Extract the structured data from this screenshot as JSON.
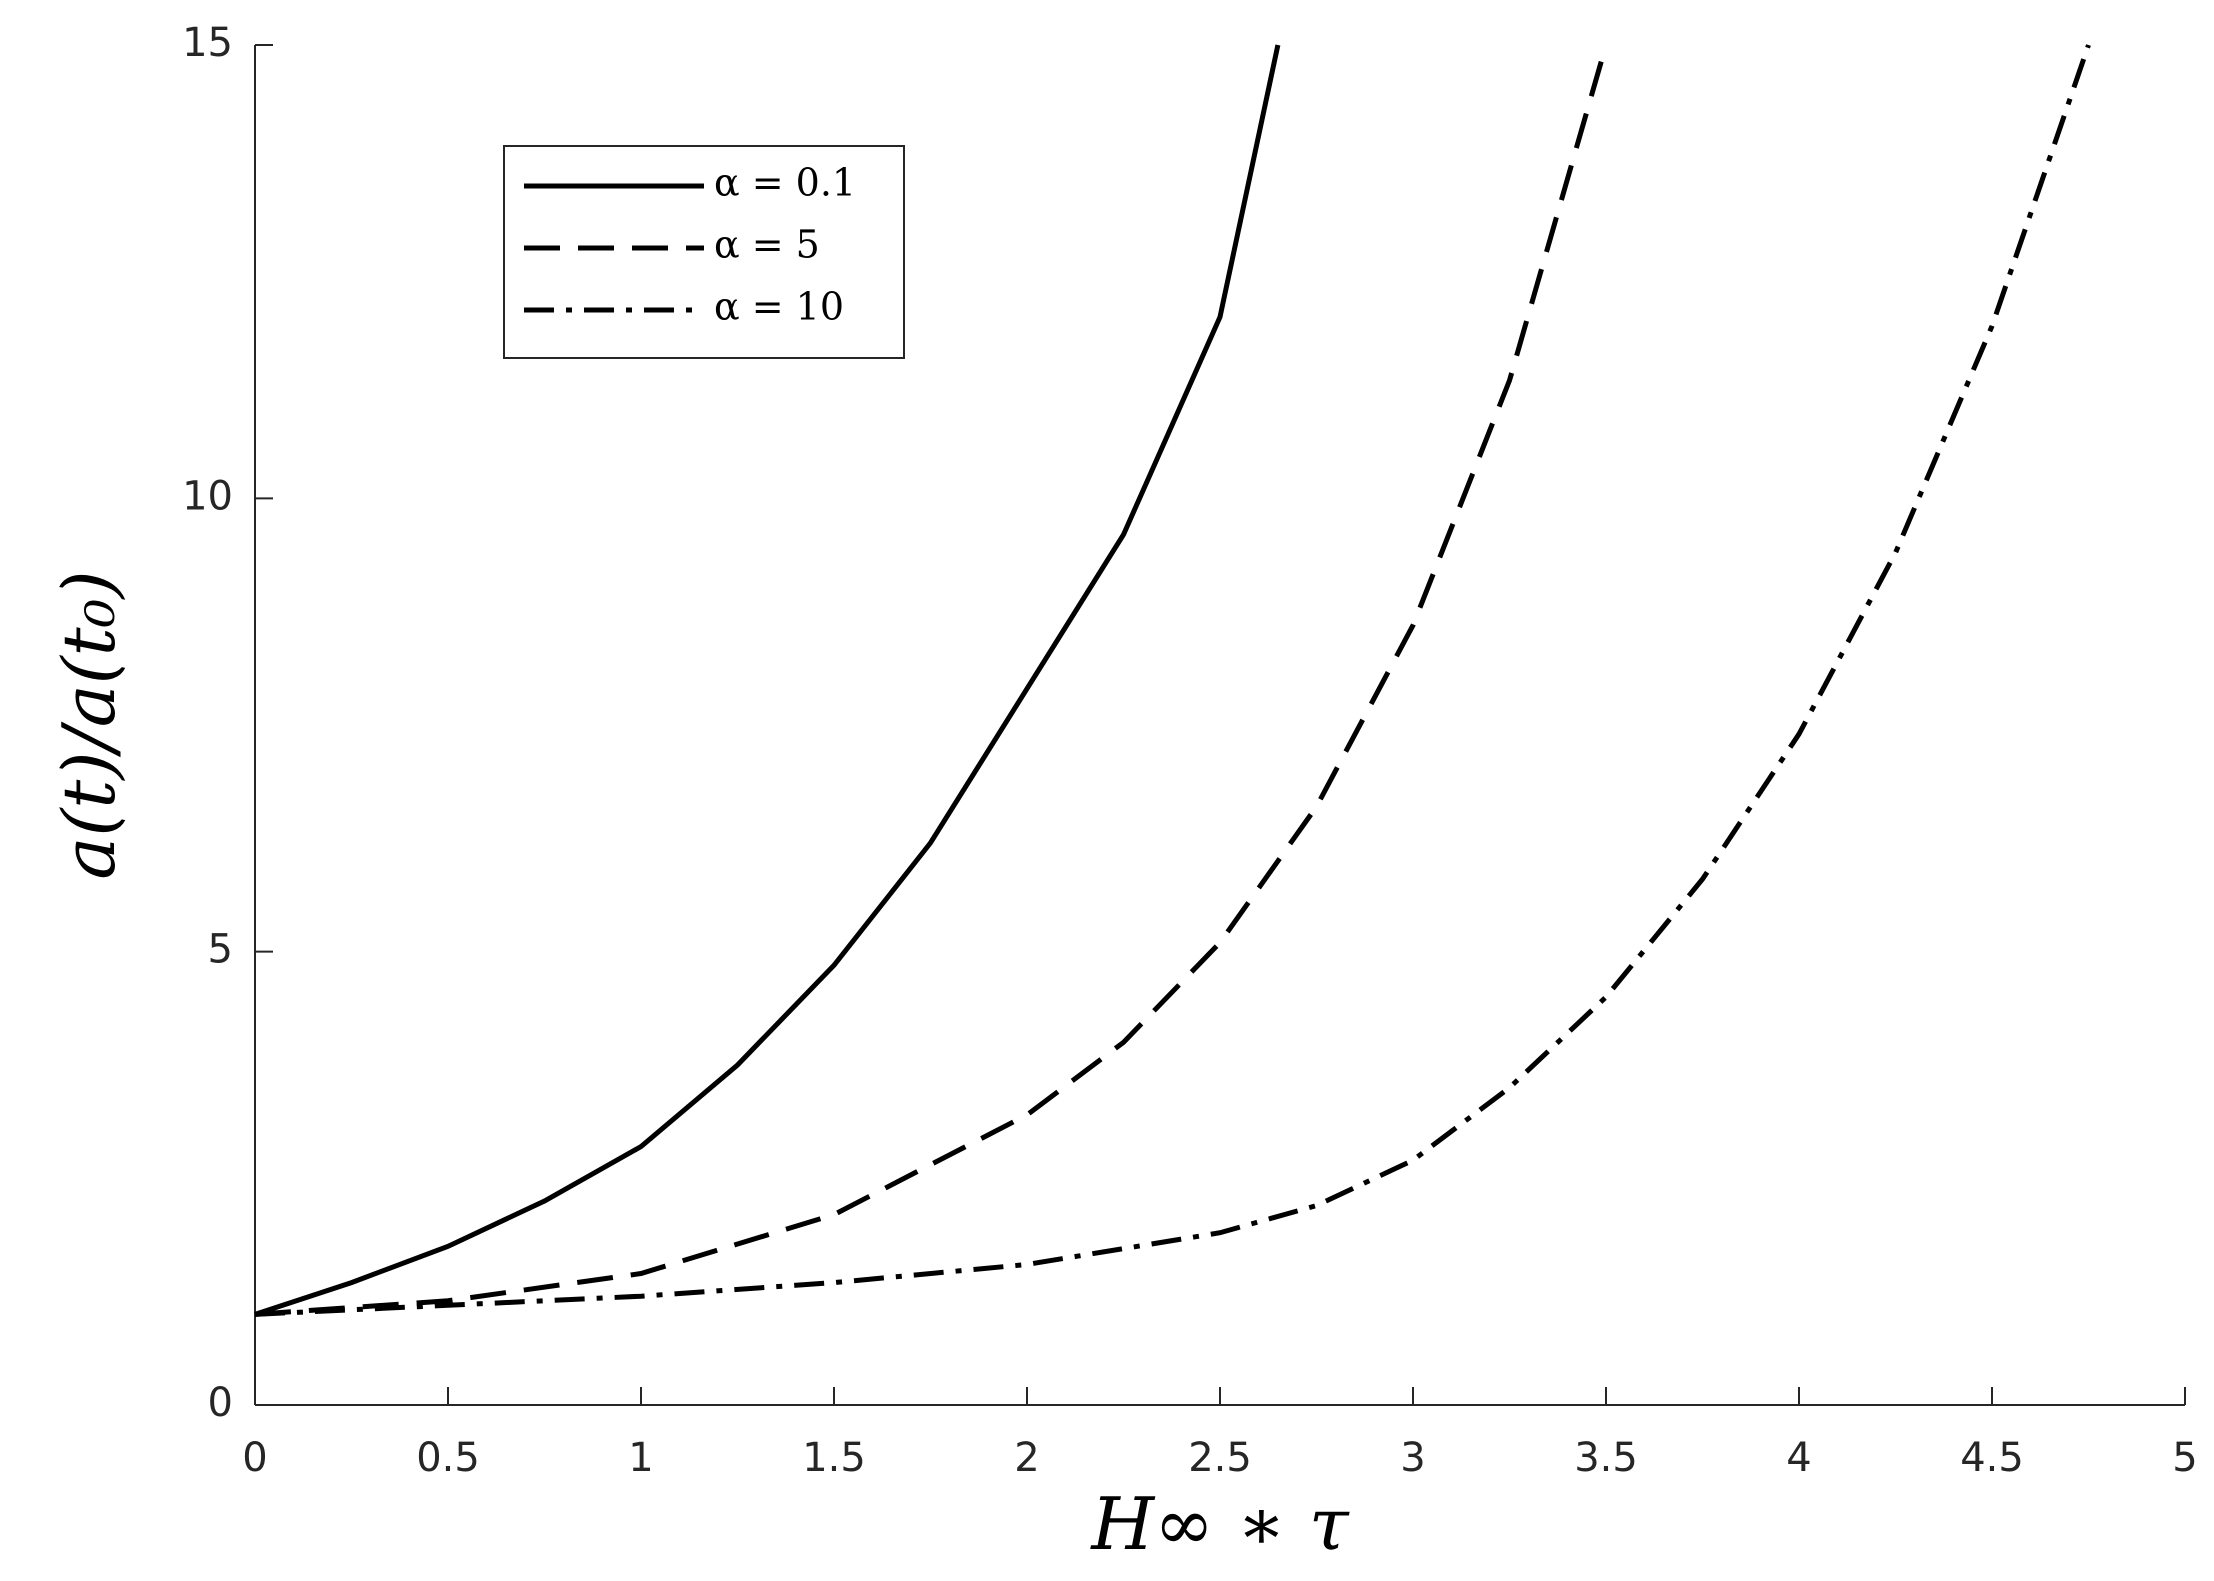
{
  "chart_data": {
    "type": "line",
    "x_label": "H∞ ∗ τ",
    "y_label": "a(t)/a(t₀)",
    "xlim": [
      0,
      5
    ],
    "ylim": [
      0,
      15
    ],
    "xticks": [
      0,
      0.5,
      1,
      1.5,
      2,
      2.5,
      3,
      3.5,
      4,
      4.5,
      5
    ],
    "yticks": [
      0,
      5,
      10,
      15
    ],
    "legend": "upper left",
    "series": [
      {
        "name": "α = 0.1",
        "color": "#000000",
        "dash": "solid",
        "x": [
          0,
          0.25,
          0.5,
          0.75,
          1,
          1.25,
          1.5,
          1.75,
          2,
          2.25,
          2.5,
          2.65
        ],
        "values": [
          1,
          1.35,
          1.75,
          2.25,
          2.85,
          3.75,
          4.85,
          6.2,
          7.9,
          9.6,
          12.0,
          15
        ]
      },
      {
        "name": "α = 5",
        "color": "#000000",
        "dash": "dashed",
        "x": [
          0,
          0.5,
          1,
          1.5,
          2,
          2.25,
          2.5,
          2.75,
          3,
          3.25,
          3.5
        ],
        "values": [
          1,
          1.15,
          1.45,
          2.1,
          3.2,
          4.0,
          5.1,
          6.6,
          8.6,
          11.3,
          15
        ]
      },
      {
        "name": "α = 10",
        "color": "#000000",
        "dash": "dashdot",
        "x": [
          0,
          0.5,
          1,
          1.5,
          2,
          2.5,
          2.75,
          3,
          3.25,
          3.5,
          3.75,
          4,
          4.25,
          4.5,
          4.75
        ],
        "values": [
          1,
          1.1,
          1.2,
          1.35,
          1.55,
          1.9,
          2.2,
          2.7,
          3.5,
          4.5,
          5.8,
          7.4,
          9.4,
          11.9,
          15
        ]
      }
    ]
  }
}
